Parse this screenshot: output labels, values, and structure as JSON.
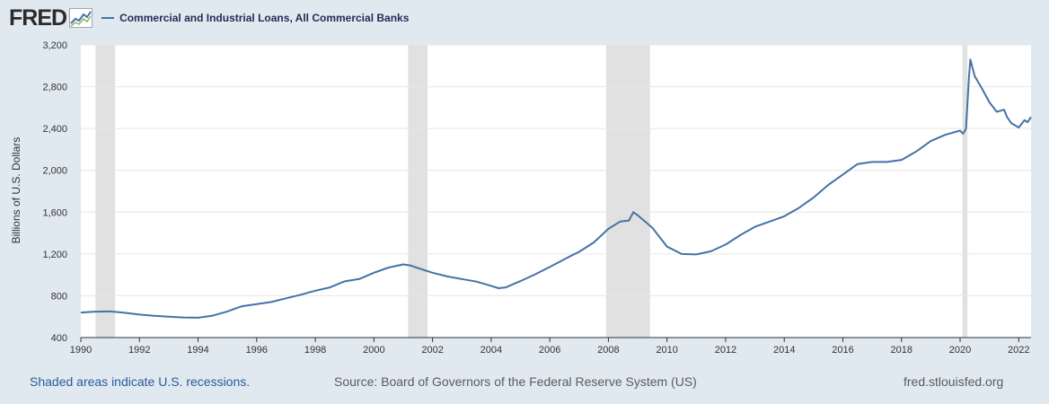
{
  "header": {
    "logo_text": "FRED",
    "logo_icon": "fred-trend-chart-icon"
  },
  "footer": {
    "recession_note": "Shaded areas indicate U.S. recessions.",
    "source": "Source: Board of Governors of the Federal Reserve System (US)",
    "site": "fred.stlouisfed.org"
  },
  "colors": {
    "background": "#e1e9f0",
    "plot_background": "#ffffff",
    "series_line": "#4572a7",
    "recession_shade": "#e1e1e1",
    "gridline": "#e6e6e6"
  },
  "chart_data": {
    "type": "line",
    "title": "",
    "xlabel": "",
    "ylabel": "Billions of U.S. Dollars",
    "xlim": [
      1990.0,
      2022.42
    ],
    "ylim": [
      400,
      3200
    ],
    "yticks": [
      400,
      800,
      1200,
      1600,
      2000,
      2400,
      2800,
      3200
    ],
    "ytick_labels": [
      "400",
      "800",
      "1,200",
      "1,600",
      "2,000",
      "2,400",
      "2,800",
      "3,200"
    ],
    "xticks": [
      1990,
      1992,
      1994,
      1996,
      1998,
      2000,
      2002,
      2004,
      2006,
      2008,
      2010,
      2012,
      2014,
      2016,
      2018,
      2020,
      2022
    ],
    "xtick_labels": [
      "1990",
      "1992",
      "1994",
      "1996",
      "1998",
      "2000",
      "2002",
      "2004",
      "2006",
      "2008",
      "2010",
      "2012",
      "2014",
      "2016",
      "2018",
      "2020",
      "2022"
    ],
    "grid": "horizontal",
    "legend": "top-left",
    "recessions": [
      {
        "start": 1990.5,
        "end": 1991.17
      },
      {
        "start": 2001.17,
        "end": 2001.83
      },
      {
        "start": 2007.92,
        "end": 2009.42
      },
      {
        "start": 2020.08,
        "end": 2020.25
      }
    ],
    "series": [
      {
        "name": "Commercial and Industrial Loans, All Commercial Banks",
        "x": [
          1990.0,
          1990.5,
          1991.0,
          1991.5,
          1992.0,
          1992.5,
          1993.0,
          1993.5,
          1994.0,
          1994.5,
          1995.0,
          1995.5,
          1996.0,
          1996.5,
          1997.0,
          1997.5,
          1998.0,
          1998.5,
          1999.0,
          1999.5,
          2000.0,
          2000.5,
          2001.0,
          2001.25,
          2001.5,
          2002.0,
          2002.5,
          2003.0,
          2003.5,
          2004.0,
          2004.25,
          2004.5,
          2005.0,
          2005.5,
          2006.0,
          2006.5,
          2007.0,
          2007.5,
          2008.0,
          2008.4,
          2008.7,
          2008.85,
          2009.0,
          2009.5,
          2010.0,
          2010.5,
          2011.0,
          2011.5,
          2012.0,
          2012.5,
          2013.0,
          2013.5,
          2014.0,
          2014.5,
          2015.0,
          2015.5,
          2016.0,
          2016.5,
          2017.0,
          2017.5,
          2018.0,
          2018.5,
          2019.0,
          2019.5,
          2020.0,
          2020.1,
          2020.2,
          2020.3,
          2020.35,
          2020.5,
          2020.75,
          2021.0,
          2021.25,
          2021.5,
          2021.6,
          2021.75,
          2022.0,
          2022.2,
          2022.3,
          2022.42
        ],
        "values": [
          640,
          648,
          650,
          637,
          620,
          608,
          600,
          592,
          590,
          610,
          650,
          700,
          720,
          740,
          775,
          810,
          848,
          880,
          938,
          960,
          1020,
          1070,
          1100,
          1090,
          1065,
          1020,
          985,
          960,
          935,
          895,
          872,
          880,
          940,
          1005,
          1075,
          1150,
          1220,
          1310,
          1440,
          1510,
          1520,
          1600,
          1570,
          1450,
          1270,
          1200,
          1195,
          1225,
          1290,
          1380,
          1460,
          1510,
          1560,
          1640,
          1740,
          1860,
          1960,
          2060,
          2080,
          2080,
          2100,
          2180,
          2280,
          2340,
          2380,
          2350,
          2400,
          2880,
          3060,
          2900,
          2780,
          2650,
          2560,
          2580,
          2510,
          2450,
          2410,
          2480,
          2460,
          2510
        ]
      }
    ]
  }
}
